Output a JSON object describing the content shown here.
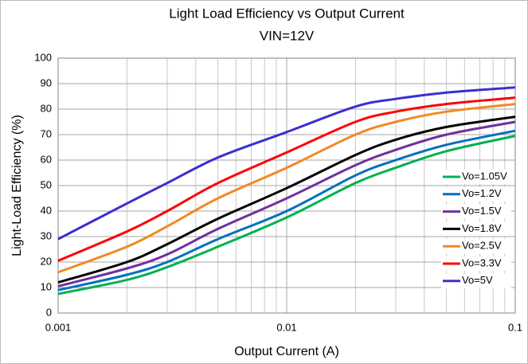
{
  "chart_data": {
    "type": "line",
    "title": "Light Load Efficiency vs Output Current",
    "subtitle": "VIN=12V",
    "x_label": "Output Current (A)",
    "y_label": "Light-Load Efficiency (%)",
    "x": [
      0.001,
      0.002,
      0.003,
      0.005,
      0.01,
      0.02,
      0.03,
      0.05,
      0.1
    ],
    "xlim": [
      0.001,
      0.1
    ],
    "xticks": [
      0.001,
      0.01,
      0.1
    ],
    "x_log": true,
    "ylim": [
      0,
      100
    ],
    "yticks": [
      0,
      10,
      20,
      30,
      40,
      50,
      60,
      70,
      80,
      90,
      100
    ],
    "grid": true,
    "legend": "right",
    "series": [
      {
        "name": "Vo=1.05V",
        "color": "#00b050",
        "values": [
          7.5,
          13,
          18,
          26,
          37.5,
          51,
          57,
          63.5,
          69.5
        ]
      },
      {
        "name": "Vo=1.2V",
        "color": "#0070c0",
        "values": [
          9,
          15,
          20,
          29,
          40,
          54,
          60,
          66,
          71.5
        ]
      },
      {
        "name": "Vo=1.5V",
        "color": "#7030a0",
        "values": [
          10.5,
          17.5,
          23,
          33,
          45,
          58,
          64,
          70,
          75
        ]
      },
      {
        "name": "Vo=1.8V",
        "color": "#000000",
        "values": [
          12,
          20,
          27,
          37,
          49,
          62,
          68,
          73,
          77
        ]
      },
      {
        "name": "Vo=2.5V",
        "color": "#f08a24",
        "values": [
          16,
          26,
          34,
          45,
          57,
          70,
          75,
          79,
          82
        ]
      },
      {
        "name": "Vo=3.3V",
        "color": "#ff0000",
        "values": [
          20.5,
          32,
          40,
          51,
          63,
          75,
          79,
          82,
          84.5
        ]
      },
      {
        "name": "Vo=5V",
        "color": "#3a2fd0",
        "values": [
          29,
          43,
          51,
          61,
          71,
          81,
          84,
          86.5,
          88.5
        ]
      }
    ]
  }
}
